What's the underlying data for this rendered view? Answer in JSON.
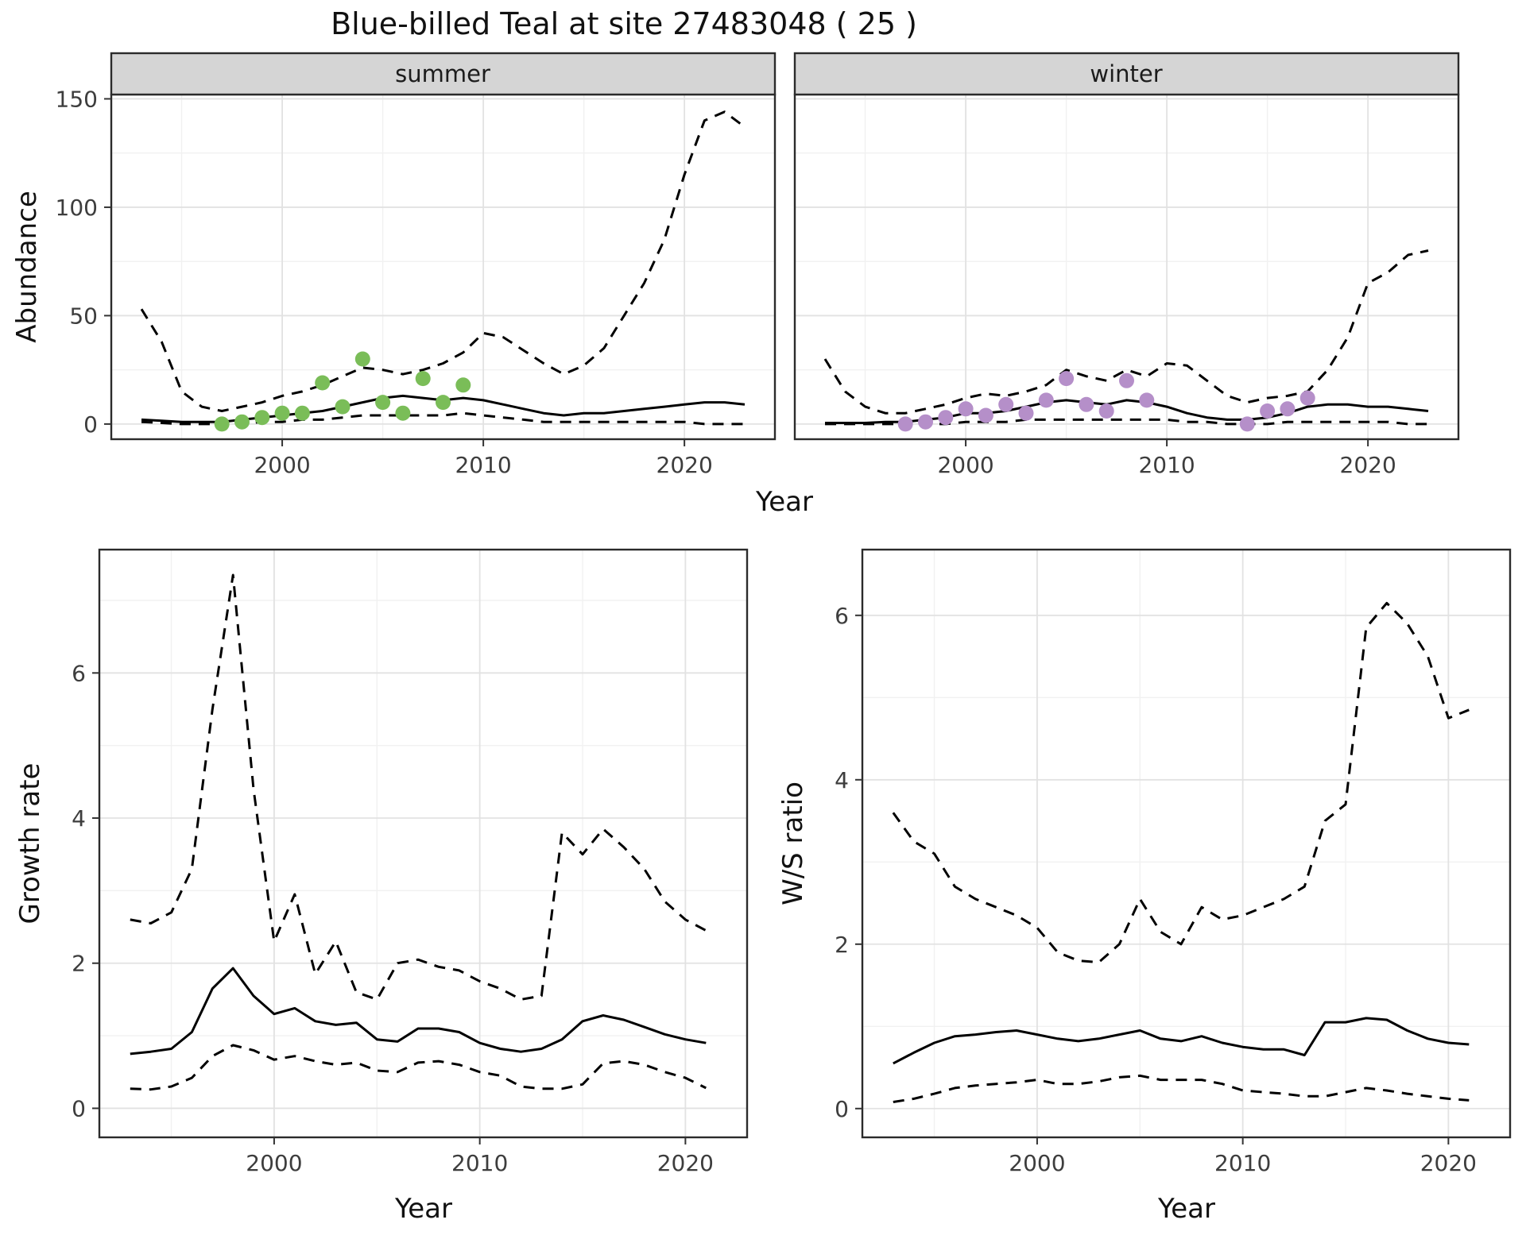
{
  "chart_data": {
    "type": "line",
    "title": "Blue-billed Teal at site 27483048 ( 25 )",
    "legend_position": "none",
    "grid": "major+minor",
    "colors": {
      "summer_points": "#7abd58",
      "winter_points": "#b58fc9",
      "line": "#000000",
      "strip_background": "#d5d5d5"
    },
    "panels": {
      "abundance": {
        "ylabel": "Abundance",
        "xlabel": "Year",
        "yticks": [
          0,
          50,
          100,
          150
        ],
        "xticks": [
          2000,
          2010,
          2020
        ],
        "ylim": [
          -7,
          152
        ],
        "xlim": [
          1991.5,
          2024.5
        ],
        "years": [
          1993,
          1994,
          1995,
          1996,
          1997,
          1998,
          1999,
          2000,
          2001,
          2002,
          2003,
          2004,
          2005,
          2006,
          2007,
          2008,
          2009,
          2010,
          2011,
          2012,
          2013,
          2014,
          2015,
          2016,
          2017,
          2018,
          2019,
          2020,
          2021,
          2022,
          2023
        ],
        "facets": [
          {
            "label": "summer",
            "point_color": "#7abd58",
            "upper_ci": [
              53,
              38,
              15,
              8,
              6,
              8,
              10,
              13,
              15,
              18,
              22,
              26,
              25,
              23,
              25,
              28,
              33,
              42,
              40,
              34,
              28,
              23,
              27,
              35,
              50,
              65,
              85,
              115,
              140,
              144,
              137
            ],
            "median": [
              2,
              1.5,
              1,
              1,
              1,
              2,
              3,
              4,
              5,
              6,
              8,
              10,
              12,
              13,
              12,
              11,
              12,
              11,
              9,
              7,
              5,
              4,
              5,
              5,
              6,
              7,
              8,
              9,
              10,
              10,
              9
            ],
            "lower_ci": [
              1,
              0.5,
              0,
              0,
              0,
              0,
              1,
              1,
              2,
              2,
              3,
              4,
              4,
              4,
              4,
              4,
              5,
              4,
              3,
              2,
              1,
              1,
              1,
              1,
              1,
              1,
              1,
              1,
              0,
              0,
              0
            ],
            "observations": {
              "years": [
                1997,
                1998,
                1999,
                2000,
                2001,
                2002,
                2003,
                2004,
                2005,
                2006,
                2007,
                2008,
                2009
              ],
              "values": [
                0,
                1,
                3,
                5,
                5,
                19,
                8,
                30,
                10,
                5,
                21,
                10,
                18
              ]
            }
          },
          {
            "label": "winter",
            "point_color": "#b58fc9",
            "upper_ci": [
              30,
              15,
              8,
              5,
              5,
              7,
              9,
              12,
              14,
              13,
              15,
              18,
              25,
              22,
              20,
              25,
              22,
              28,
              27,
              20,
              13,
              10,
              12,
              13,
              15,
              25,
              40,
              65,
              70,
              78,
              80
            ],
            "median": [
              0.5,
              0.5,
              0.5,
              1,
              1,
              2,
              3,
              5,
              5,
              6,
              8,
              10,
              11,
              10,
              9,
              11,
              10,
              8,
              5,
              3,
              2,
              2,
              3,
              5,
              8,
              9,
              9,
              8,
              8,
              7,
              6
            ],
            "lower_ci": [
              0,
              0,
              0,
              0,
              0,
              0,
              0,
              1,
              1,
              1,
              2,
              2,
              2,
              2,
              2,
              2,
              2,
              2,
              1,
              1,
              0,
              0,
              0,
              1,
              1,
              1,
              1,
              1,
              1,
              0,
              0
            ],
            "observations": {
              "years": [
                1997,
                1998,
                1999,
                2000,
                2001,
                2002,
                2003,
                2004,
                2005,
                2006,
                2007,
                2008,
                2009,
                2014,
                2015,
                2016,
                2017
              ],
              "values": [
                0,
                1,
                3,
                7,
                4,
                9,
                5,
                11,
                21,
                9,
                6,
                20,
                11,
                0,
                6,
                7,
                12
              ]
            }
          }
        ]
      },
      "growth_rate": {
        "ylabel": "Growth rate",
        "xlabel": "Year",
        "yticks": [
          0,
          2,
          4,
          6
        ],
        "xticks": [
          2000,
          2010,
          2020
        ],
        "ylim": [
          -0.4,
          7.7
        ],
        "xlim": [
          1991.5,
          2023
        ],
        "years": [
          1993,
          1994,
          1995,
          1996,
          1997,
          1998,
          1999,
          2000,
          2001,
          2002,
          2003,
          2004,
          2005,
          2006,
          2007,
          2008,
          2009,
          2010,
          2011,
          2012,
          2013,
          2014,
          2015,
          2016,
          2017,
          2018,
          2019,
          2020,
          2021
        ],
        "upper_ci": [
          2.6,
          2.55,
          2.7,
          3.3,
          5.5,
          7.35,
          4.4,
          2.3,
          2.95,
          1.85,
          2.3,
          1.6,
          1.5,
          2.0,
          2.05,
          1.95,
          1.9,
          1.75,
          1.65,
          1.5,
          1.55,
          3.8,
          3.5,
          3.85,
          3.6,
          3.3,
          2.85,
          2.6,
          2.45
        ],
        "median": [
          0.75,
          0.78,
          0.82,
          1.05,
          1.65,
          1.93,
          1.55,
          1.3,
          1.38,
          1.2,
          1.15,
          1.18,
          0.95,
          0.92,
          1.1,
          1.1,
          1.05,
          0.9,
          0.82,
          0.78,
          0.82,
          0.95,
          1.2,
          1.28,
          1.22,
          1.12,
          1.02,
          0.95,
          0.9
        ],
        "lower_ci": [
          0.27,
          0.26,
          0.3,
          0.42,
          0.72,
          0.87,
          0.8,
          0.67,
          0.72,
          0.65,
          0.6,
          0.63,
          0.52,
          0.5,
          0.63,
          0.65,
          0.6,
          0.5,
          0.45,
          0.3,
          0.27,
          0.27,
          0.33,
          0.62,
          0.65,
          0.6,
          0.5,
          0.42,
          0.28
        ]
      },
      "ws_ratio": {
        "ylabel": "W/S ratio",
        "xlabel": "Year",
        "yticks": [
          0,
          2,
          4,
          6
        ],
        "xticks": [
          2000,
          2010,
          2020
        ],
        "ylim": [
          -0.35,
          6.8
        ],
        "xlim": [
          1991.5,
          2023
        ],
        "years": [
          1993,
          1994,
          1995,
          1996,
          1997,
          1998,
          1999,
          2000,
          2001,
          2002,
          2003,
          2004,
          2005,
          2006,
          2007,
          2008,
          2009,
          2010,
          2011,
          2012,
          2013,
          2014,
          2015,
          2016,
          2017,
          2018,
          2019,
          2020,
          2021
        ],
        "upper_ci": [
          3.6,
          3.25,
          3.1,
          2.7,
          2.55,
          2.45,
          2.35,
          2.2,
          1.9,
          1.8,
          1.78,
          2.0,
          2.55,
          2.15,
          2.0,
          2.45,
          2.3,
          2.35,
          2.45,
          2.55,
          2.7,
          3.5,
          3.7,
          5.85,
          6.15,
          5.9,
          5.5,
          4.75,
          4.85
        ],
        "median": [
          0.55,
          0.68,
          0.8,
          0.88,
          0.9,
          0.93,
          0.95,
          0.9,
          0.85,
          0.82,
          0.85,
          0.9,
          0.95,
          0.85,
          0.82,
          0.88,
          0.8,
          0.75,
          0.72,
          0.72,
          0.65,
          1.05,
          1.05,
          1.1,
          1.08,
          0.95,
          0.85,
          0.8,
          0.78
        ],
        "lower_ci": [
          0.08,
          0.12,
          0.18,
          0.25,
          0.28,
          0.3,
          0.32,
          0.35,
          0.3,
          0.3,
          0.33,
          0.38,
          0.4,
          0.35,
          0.35,
          0.35,
          0.3,
          0.22,
          0.2,
          0.18,
          0.15,
          0.15,
          0.2,
          0.25,
          0.22,
          0.18,
          0.15,
          0.12,
          0.1
        ]
      }
    },
    "line_styles": {
      "median": "solid",
      "credible_interval": "dashed"
    }
  }
}
